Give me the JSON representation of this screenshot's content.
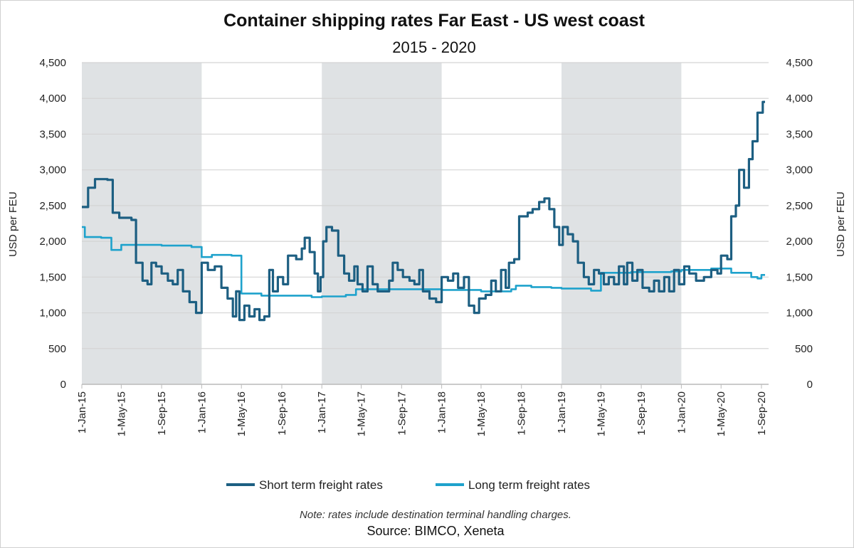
{
  "chart_data": {
    "type": "line",
    "title": "Container shipping rates Far East - US west coast",
    "subtitle": "2015 - 2020",
    "ylabel_left": "USD per FEU",
    "ylabel_right": "USD per FEU",
    "ylim": [
      0,
      4500
    ],
    "yticks": [
      "0",
      "500",
      "1,000",
      "1,500",
      "2,000",
      "2,500",
      "3,000",
      "3,500",
      "4,000",
      "4,500"
    ],
    "ytick_values": [
      0,
      500,
      1000,
      1500,
      2000,
      2500,
      3000,
      3500,
      4000,
      4500
    ],
    "xticks": [
      "1-Jan-15",
      "1-May-15",
      "1-Sep-15",
      "1-Jan-16",
      "1-May-16",
      "1-Sep-16",
      "1-Jan-17",
      "1-May-17",
      "1-Sep-17",
      "1-Jan-18",
      "1-May-18",
      "1-Sep-18",
      "1-Jan-19",
      "1-May-19",
      "1-Sep-19",
      "1-Jan-20",
      "1-May-20",
      "1-Sep-20"
    ],
    "xtick_dates": [
      "2015-01-01",
      "2015-05-01",
      "2015-09-01",
      "2016-01-01",
      "2016-05-01",
      "2016-09-01",
      "2017-01-01",
      "2017-05-01",
      "2017-09-01",
      "2018-01-01",
      "2018-05-01",
      "2018-09-01",
      "2019-01-01",
      "2019-05-01",
      "2019-09-01",
      "2020-01-01",
      "2020-05-01",
      "2020-09-01"
    ],
    "shaded_years": [
      [
        "2015-01-01",
        "2016-01-01"
      ],
      [
        "2017-01-01",
        "2018-01-01"
      ],
      [
        "2019-01-01",
        "2020-01-01"
      ]
    ],
    "grid": true,
    "legend_position": "bottom",
    "colors": {
      "short": "#1d5f82",
      "long": "#1ea2cc",
      "shade": "#dfe2e4",
      "grid": "#d4d4d4"
    },
    "series": [
      {
        "name": "Short term freight rates",
        "step": true,
        "points": [
          [
            "2015-01-01",
            2480
          ],
          [
            "2015-01-20",
            2750
          ],
          [
            "2015-02-10",
            2870
          ],
          [
            "2015-03-20",
            2860
          ],
          [
            "2015-04-05",
            2400
          ],
          [
            "2015-04-25",
            2330
          ],
          [
            "2015-06-01",
            2300
          ],
          [
            "2015-06-15",
            1700
          ],
          [
            "2015-07-05",
            1450
          ],
          [
            "2015-07-20",
            1400
          ],
          [
            "2015-08-01",
            1700
          ],
          [
            "2015-08-15",
            1650
          ],
          [
            "2015-09-01",
            1550
          ],
          [
            "2015-09-20",
            1450
          ],
          [
            "2015-10-05",
            1400
          ],
          [
            "2015-10-20",
            1600
          ],
          [
            "2015-11-05",
            1300
          ],
          [
            "2015-11-25",
            1150
          ],
          [
            "2015-12-15",
            1000
          ],
          [
            "2016-01-01",
            1700
          ],
          [
            "2016-01-20",
            1600
          ],
          [
            "2016-02-10",
            1650
          ],
          [
            "2016-03-01",
            1350
          ],
          [
            "2016-03-20",
            1200
          ],
          [
            "2016-04-05",
            950
          ],
          [
            "2016-04-15",
            1300
          ],
          [
            "2016-04-25",
            900
          ],
          [
            "2016-05-10",
            1100
          ],
          [
            "2016-05-25",
            950
          ],
          [
            "2016-06-10",
            1050
          ],
          [
            "2016-06-25",
            900
          ],
          [
            "2016-07-10",
            950
          ],
          [
            "2016-07-25",
            1600
          ],
          [
            "2016-08-05",
            1300
          ],
          [
            "2016-08-20",
            1500
          ],
          [
            "2016-09-05",
            1400
          ],
          [
            "2016-09-20",
            1800
          ],
          [
            "2016-10-15",
            1750
          ],
          [
            "2016-11-01",
            1900
          ],
          [
            "2016-11-10",
            2050
          ],
          [
            "2016-11-25",
            1850
          ],
          [
            "2016-12-10",
            1550
          ],
          [
            "2016-12-20",
            1300
          ],
          [
            "2016-12-28",
            1500
          ],
          [
            "2017-01-05",
            2000
          ],
          [
            "2017-01-15",
            2200
          ],
          [
            "2017-02-01",
            2150
          ],
          [
            "2017-02-20",
            1800
          ],
          [
            "2017-03-10",
            1550
          ],
          [
            "2017-03-25",
            1450
          ],
          [
            "2017-04-10",
            1650
          ],
          [
            "2017-04-20",
            1400
          ],
          [
            "2017-05-05",
            1300
          ],
          [
            "2017-05-20",
            1650
          ],
          [
            "2017-06-05",
            1400
          ],
          [
            "2017-06-20",
            1300
          ],
          [
            "2017-07-10",
            1300
          ],
          [
            "2017-07-25",
            1450
          ],
          [
            "2017-08-05",
            1700
          ],
          [
            "2017-08-20",
            1600
          ],
          [
            "2017-09-05",
            1500
          ],
          [
            "2017-09-25",
            1450
          ],
          [
            "2017-10-10",
            1400
          ],
          [
            "2017-10-25",
            1600
          ],
          [
            "2017-11-05",
            1300
          ],
          [
            "2017-11-25",
            1200
          ],
          [
            "2017-12-15",
            1150
          ],
          [
            "2018-01-01",
            1500
          ],
          [
            "2018-01-20",
            1450
          ],
          [
            "2018-02-05",
            1550
          ],
          [
            "2018-02-20",
            1350
          ],
          [
            "2018-03-10",
            1500
          ],
          [
            "2018-03-25",
            1100
          ],
          [
            "2018-04-10",
            1000
          ],
          [
            "2018-04-25",
            1200
          ],
          [
            "2018-05-15",
            1250
          ],
          [
            "2018-06-01",
            1450
          ],
          [
            "2018-06-15",
            1300
          ],
          [
            "2018-07-01",
            1600
          ],
          [
            "2018-07-15",
            1350
          ],
          [
            "2018-07-25",
            1700
          ],
          [
            "2018-08-10",
            1750
          ],
          [
            "2018-08-25",
            2350
          ],
          [
            "2018-09-20",
            2400
          ],
          [
            "2018-10-05",
            2450
          ],
          [
            "2018-10-25",
            2550
          ],
          [
            "2018-11-10",
            2600
          ],
          [
            "2018-11-25",
            2450
          ],
          [
            "2018-12-10",
            2200
          ],
          [
            "2018-12-25",
            1950
          ],
          [
            "2019-01-05",
            2200
          ],
          [
            "2019-01-20",
            2100
          ],
          [
            "2019-02-05",
            2000
          ],
          [
            "2019-02-20",
            1700
          ],
          [
            "2019-03-10",
            1500
          ],
          [
            "2019-03-25",
            1400
          ],
          [
            "2019-04-10",
            1600
          ],
          [
            "2019-04-25",
            1550
          ],
          [
            "2019-05-10",
            1400
          ],
          [
            "2019-05-25",
            1500
          ],
          [
            "2019-06-10",
            1400
          ],
          [
            "2019-06-25",
            1650
          ],
          [
            "2019-07-10",
            1400
          ],
          [
            "2019-07-20",
            1700
          ],
          [
            "2019-08-05",
            1450
          ],
          [
            "2019-08-20",
            1600
          ],
          [
            "2019-09-05",
            1350
          ],
          [
            "2019-09-25",
            1300
          ],
          [
            "2019-10-10",
            1450
          ],
          [
            "2019-10-25",
            1300
          ],
          [
            "2019-11-10",
            1500
          ],
          [
            "2019-11-25",
            1300
          ],
          [
            "2019-12-10",
            1600
          ],
          [
            "2019-12-25",
            1400
          ],
          [
            "2020-01-10",
            1650
          ],
          [
            "2020-01-25",
            1550
          ],
          [
            "2020-02-15",
            1450
          ],
          [
            "2020-03-10",
            1500
          ],
          [
            "2020-04-01",
            1600
          ],
          [
            "2020-04-20",
            1550
          ],
          [
            "2020-05-01",
            1800
          ],
          [
            "2020-05-20",
            1750
          ],
          [
            "2020-06-01",
            2350
          ],
          [
            "2020-06-15",
            2500
          ],
          [
            "2020-06-25",
            3000
          ],
          [
            "2020-07-10",
            2750
          ],
          [
            "2020-07-25",
            3150
          ],
          [
            "2020-08-05",
            3400
          ],
          [
            "2020-08-20",
            3800
          ],
          [
            "2020-09-05",
            3950
          ],
          [
            "2020-09-12",
            3950
          ]
        ]
      },
      {
        "name": "Long term freight rates",
        "step": true,
        "points": [
          [
            "2015-01-01",
            2200
          ],
          [
            "2015-01-10",
            2060
          ],
          [
            "2015-03-01",
            2050
          ],
          [
            "2015-04-01",
            1880
          ],
          [
            "2015-05-01",
            1950
          ],
          [
            "2015-09-01",
            1940
          ],
          [
            "2015-12-01",
            1920
          ],
          [
            "2016-01-01",
            1780
          ],
          [
            "2016-02-01",
            1810
          ],
          [
            "2016-04-01",
            1800
          ],
          [
            "2016-05-01",
            1270
          ],
          [
            "2016-07-01",
            1240
          ],
          [
            "2016-12-01",
            1220
          ],
          [
            "2017-01-01",
            1230
          ],
          [
            "2017-03-15",
            1250
          ],
          [
            "2017-04-15",
            1330
          ],
          [
            "2017-12-01",
            1330
          ],
          [
            "2018-01-01",
            1320
          ],
          [
            "2018-05-01",
            1300
          ],
          [
            "2018-08-01",
            1330
          ],
          [
            "2018-08-15",
            1380
          ],
          [
            "2018-10-01",
            1360
          ],
          [
            "2018-12-01",
            1350
          ],
          [
            "2019-01-01",
            1340
          ],
          [
            "2019-04-01",
            1310
          ],
          [
            "2019-05-01",
            1560
          ],
          [
            "2019-08-01",
            1570
          ],
          [
            "2019-12-01",
            1580
          ],
          [
            "2020-01-01",
            1600
          ],
          [
            "2020-04-01",
            1620
          ],
          [
            "2020-06-01",
            1560
          ],
          [
            "2020-08-01",
            1500
          ],
          [
            "2020-08-20",
            1480
          ],
          [
            "2020-09-01",
            1530
          ],
          [
            "2020-09-12",
            1530
          ]
        ]
      }
    ]
  },
  "note": "Note: rates include destination terminal handling charges.",
  "source": "Source: BIMCO, Xeneta"
}
